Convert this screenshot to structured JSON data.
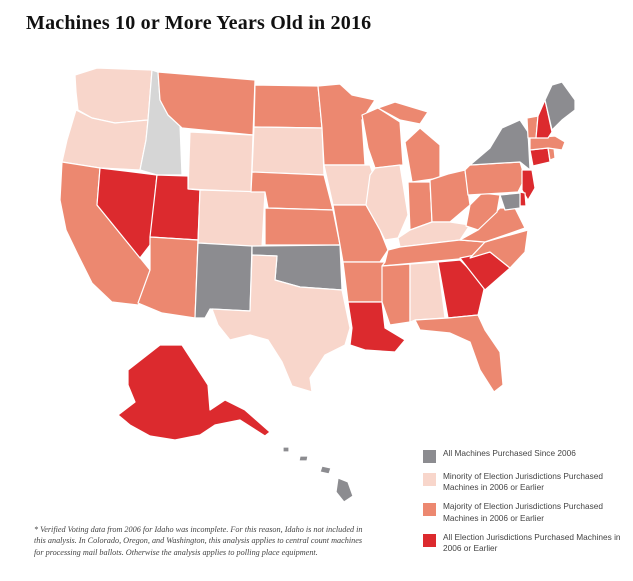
{
  "title": "Machines 10 or More Years Old in 2016",
  "colors": {
    "all_since_2006": "#8c8c90",
    "minority": "#f8d6cb",
    "majority": "#ec8870",
    "all_before": "#dc2a2e",
    "no_data": "#d6d6d6"
  },
  "legend": [
    {
      "category": "all_since_2006",
      "label": "All Machines Purchased Since 2006"
    },
    {
      "category": "minority",
      "label": "Minority of Election Jurisdictions Purchased Machines in 2006 or Earlier"
    },
    {
      "category": "majority",
      "label": "Majority of Election Jurisdictions Purchased Machines in 2006 or Earlier"
    },
    {
      "category": "all_before",
      "label": "All Election Jurisdictions Purchased Machines in 2006 or Earlier"
    }
  ],
  "footnote": "* Verified Voting data from 2006 for Idaho was incomplete. For this reason, Idaho is not included in this analysis. In Colorado, Oregon, and Washington, this analysis applies to central count machines for processing mail ballots. Otherwise the analysis applies to polling place equipment.",
  "states": {
    "WA": "minority",
    "OR": "minority",
    "CA": "majority",
    "NV": "all_before",
    "ID": "no_data",
    "MT": "majority",
    "WY": "minority",
    "UT": "all_before",
    "CO": "minority",
    "AZ": "majority",
    "NM": "all_since_2006",
    "ND": "majority",
    "SD": "minority",
    "NE": "majority",
    "KS": "majority",
    "OK": "all_since_2006",
    "TX": "minority",
    "MN": "majority",
    "IA": "minority",
    "MO": "majority",
    "AR": "majority",
    "LA": "all_before",
    "WI": "majority",
    "IL": "minority",
    "MI": "majority",
    "IN": "majority",
    "OH": "majority",
    "KY": "minority",
    "TN": "majority",
    "MS": "majority",
    "AL": "minority",
    "GA": "all_before",
    "FL": "majority",
    "SC": "all_before",
    "NC": "majority",
    "VA": "majority",
    "WV": "majority",
    "PA": "majority",
    "NY": "all_since_2006",
    "VT": "majority",
    "NH": "all_before",
    "ME": "all_since_2006",
    "MA": "majority",
    "RI": "majority",
    "CT": "all_before",
    "NJ": "all_before",
    "DE": "all_before",
    "MD": "all_since_2006",
    "AK": "all_before",
    "HI": "all_since_2006"
  }
}
